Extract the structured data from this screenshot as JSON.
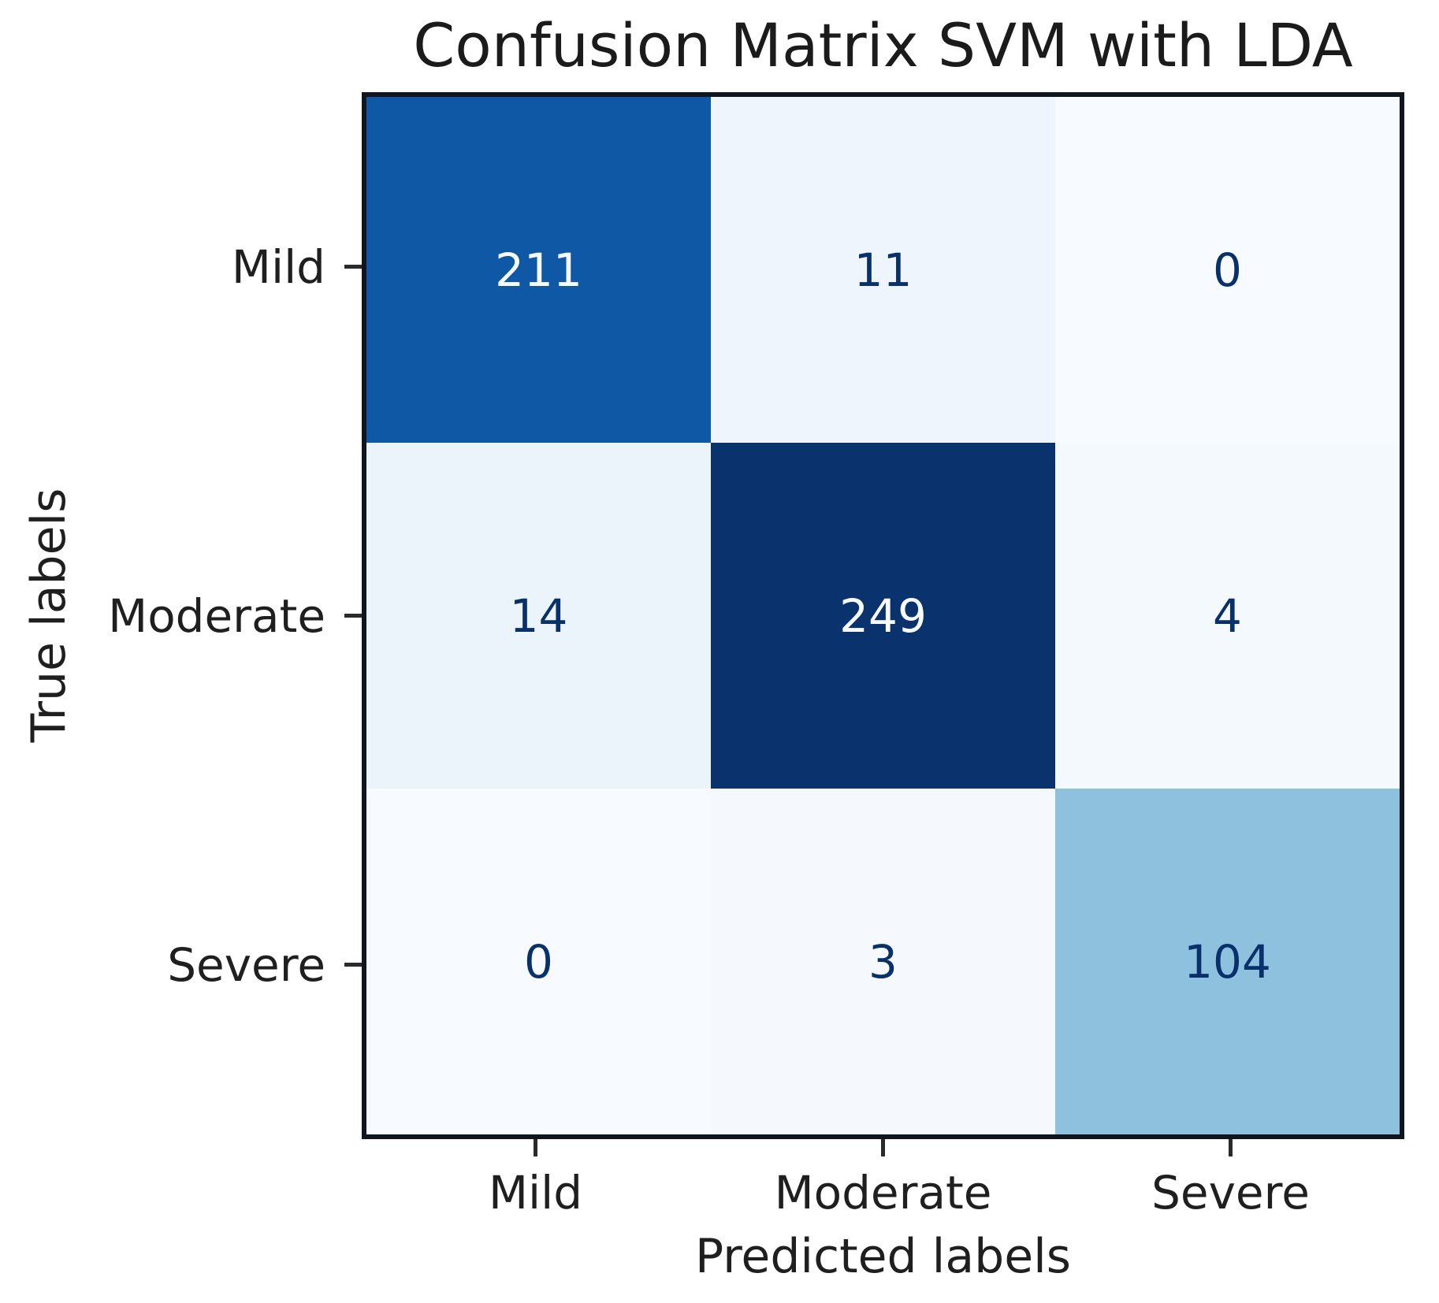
{
  "chart_data": {
    "type": "heatmap",
    "subtype": "confusion-matrix",
    "title": "Confusion Matrix SVM with LDA",
    "xlabel": "Predicted labels",
    "ylabel": "True labels",
    "classes": [
      "Mild",
      "Moderate",
      "Severe"
    ],
    "matrix": [
      [
        211,
        11,
        0
      ],
      [
        14,
        249,
        4
      ],
      [
        0,
        3,
        104
      ]
    ],
    "vmin": 0,
    "vmax": 249,
    "colormap": "Blues",
    "grid": false,
    "legend": "none",
    "cell_colors": [
      [
        "#0f58a5",
        "#eef5fc",
        "#f7fbff"
      ],
      [
        "#ecf4fb",
        "#0a336e",
        "#f4f9fe"
      ],
      [
        "#f7fbff",
        "#f5f9fe",
        "#8ec1de"
      ]
    ],
    "text_color_light": "#f7fbff",
    "text_color_dark": "#08306b",
    "spine_color": "#10151e",
    "tick_color": "#2a2a2a"
  }
}
